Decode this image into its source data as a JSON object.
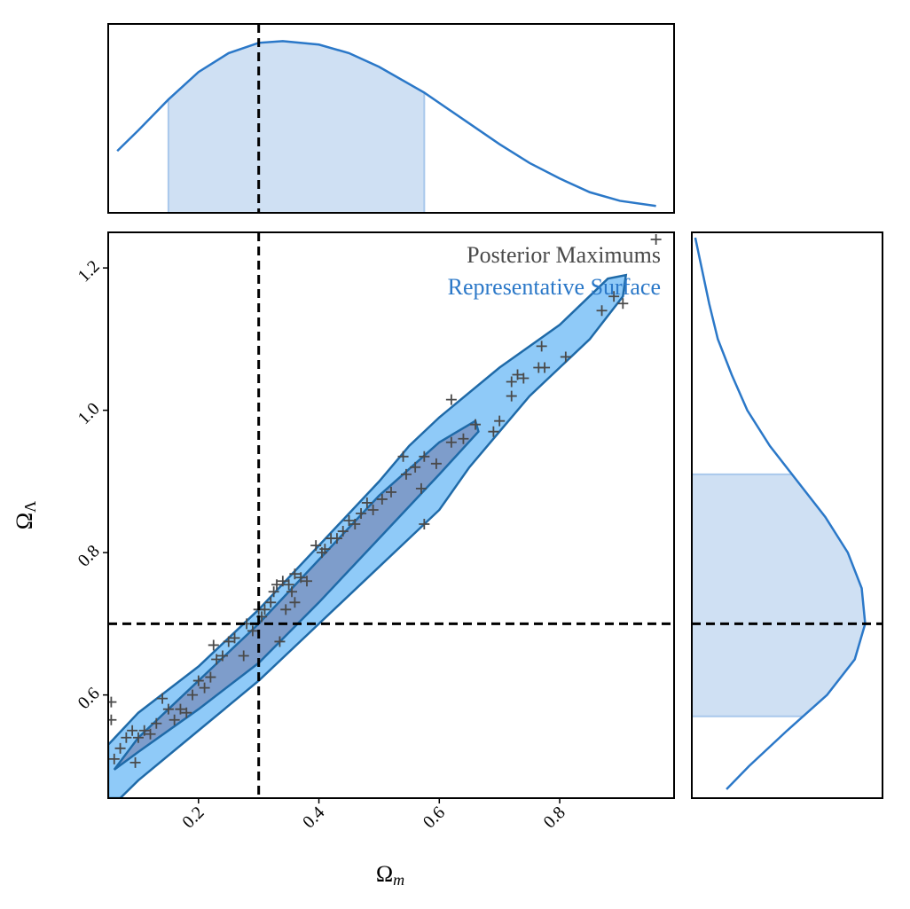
{
  "chart_data": [
    {
      "type": "line",
      "orientation": "vertical",
      "color": "#2b78c8",
      "interval_color": "#cfe0f3",
      "x": [
        0.065,
        0.1,
        0.15,
        0.2,
        0.25,
        0.3,
        0.34,
        0.4,
        0.45,
        0.5,
        0.575,
        0.65,
        0.7,
        0.75,
        0.8,
        0.85,
        0.9,
        0.96
      ],
      "values": [
        0.36,
        0.48,
        0.66,
        0.82,
        0.93,
        0.99,
        1.0,
        0.98,
        0.93,
        0.85,
        0.7,
        0.52,
        0.4,
        0.29,
        0.2,
        0.12,
        0.07,
        0.04
      ],
      "xlim": [
        0.05,
        0.99
      ],
      "ylim": [
        0,
        1.1
      ],
      "interval": [
        0.15,
        0.575
      ],
      "truth": 0.3
    },
    {
      "type": "scatter",
      "x_label": {
        "symbol": "Ω",
        "subscript": "m"
      },
      "y_label": {
        "symbol": "Ω",
        "subscript": "Λ"
      },
      "xlim": [
        0.05,
        0.99
      ],
      "ylim": [
        0.455,
        1.25
      ],
      "xticks": [
        0.2,
        0.4,
        0.6,
        0.8
      ],
      "yticks": [
        0.6,
        0.8,
        {
          "value": 1.0,
          "label": "1.0"
        },
        1.2
      ],
      "truth": {
        "x": 0.3,
        "y": 0.7
      },
      "series": [
        {
          "name": "Posterior Maximums",
          "color": "#4a4a4a",
          "x": [
            0.96,
            0.905,
            0.89,
            0.87,
            0.81,
            0.77,
            0.775,
            0.765,
            0.74,
            0.73,
            0.72,
            0.72,
            0.7,
            0.69,
            0.66,
            0.64,
            0.62,
            0.62,
            0.595,
            0.575,
            0.57,
            0.56,
            0.545,
            0.54,
            0.52,
            0.505,
            0.49,
            0.48,
            0.47,
            0.46,
            0.45,
            0.44,
            0.43,
            0.42,
            0.41,
            0.405,
            0.395,
            0.575,
            0.38,
            0.37,
            0.36,
            0.355,
            0.35,
            0.34,
            0.33,
            0.325,
            0.32,
            0.31,
            0.305,
            0.3,
            0.29,
            0.28,
            0.275,
            0.26,
            0.25,
            0.24,
            0.23,
            0.22,
            0.21,
            0.2,
            0.19,
            0.18,
            0.17,
            0.16,
            0.15,
            0.14,
            0.13,
            0.12,
            0.11,
            0.1,
            0.095,
            0.09,
            0.08,
            0.07,
            0.06,
            0.055,
            0.055,
            0.225,
            0.335,
            0.345,
            0.36
          ],
          "y": [
            1.24,
            1.15,
            1.16,
            1.14,
            1.075,
            1.09,
            1.06,
            1.06,
            1.045,
            1.05,
            1.04,
            1.02,
            0.985,
            0.97,
            0.98,
            0.96,
            1.015,
            0.955,
            0.925,
            0.935,
            0.89,
            0.92,
            0.91,
            0.935,
            0.885,
            0.875,
            0.86,
            0.87,
            0.855,
            0.84,
            0.845,
            0.83,
            0.82,
            0.82,
            0.805,
            0.8,
            0.81,
            0.84,
            0.76,
            0.765,
            0.77,
            0.745,
            0.755,
            0.76,
            0.755,
            0.745,
            0.73,
            0.72,
            0.71,
            0.72,
            0.69,
            0.7,
            0.655,
            0.68,
            0.675,
            0.655,
            0.65,
            0.625,
            0.61,
            0.62,
            0.6,
            0.575,
            0.58,
            0.565,
            0.58,
            0.595,
            0.56,
            0.545,
            0.55,
            0.54,
            0.505,
            0.55,
            0.54,
            0.525,
            0.51,
            0.565,
            0.59,
            0.67,
            0.675,
            0.72,
            0.73
          ]
        },
        {
          "name": "Representative Surface",
          "color": "#2b78c8",
          "edge_color": "#1f6aa8",
          "contours": [
            {
              "color": "#8fcaf8",
              "x": [
                0.05,
                0.1,
                0.2,
                0.3,
                0.4,
                0.5,
                0.55,
                0.6,
                0.7,
                0.8,
                0.88,
                0.91,
                0.905,
                0.85,
                0.75,
                0.7,
                0.65,
                0.6,
                0.5,
                0.4,
                0.3,
                0.2,
                0.1,
                0.07,
                0.05
              ],
              "y": [
                0.53,
                0.575,
                0.64,
                0.72,
                0.81,
                0.9,
                0.95,
                0.99,
                1.06,
                1.12,
                1.185,
                1.19,
                1.16,
                1.1,
                1.02,
                0.97,
                0.92,
                0.86,
                0.78,
                0.7,
                0.62,
                0.55,
                0.48,
                0.455,
                0.455
              ]
            },
            {
              "color": "#7b95c3",
              "x": [
                0.06,
                0.1,
                0.2,
                0.3,
                0.4,
                0.5,
                0.6,
                0.66,
                0.665,
                0.6,
                0.5,
                0.4,
                0.3,
                0.2,
                0.1
              ],
              "y": [
                0.495,
                0.54,
                0.62,
                0.7,
                0.79,
                0.88,
                0.955,
                0.985,
                0.97,
                0.91,
                0.82,
                0.73,
                0.645,
                0.58,
                0.52
              ]
            }
          ]
        }
      ]
    },
    {
      "type": "line",
      "orientation": "horizontal",
      "color": "#2b78c8",
      "interval_color": "#cfe0f3",
      "y": [
        1.2425,
        1.15,
        1.1,
        1.05,
        1.0,
        0.95,
        0.9,
        0.85,
        0.8,
        0.75,
        0.7,
        0.65,
        0.6,
        0.55,
        0.5,
        0.4675
      ],
      "values": [
        0.02,
        0.1,
        0.15,
        0.23,
        0.32,
        0.45,
        0.61,
        0.77,
        0.9,
        0.98,
        1.0,
        0.94,
        0.78,
        0.55,
        0.33,
        0.2
      ],
      "ylim": [
        0.455,
        1.25
      ],
      "xlim": [
        0,
        1.1
      ],
      "interval": [
        0.57,
        0.91
      ],
      "truth": 0.7
    }
  ]
}
